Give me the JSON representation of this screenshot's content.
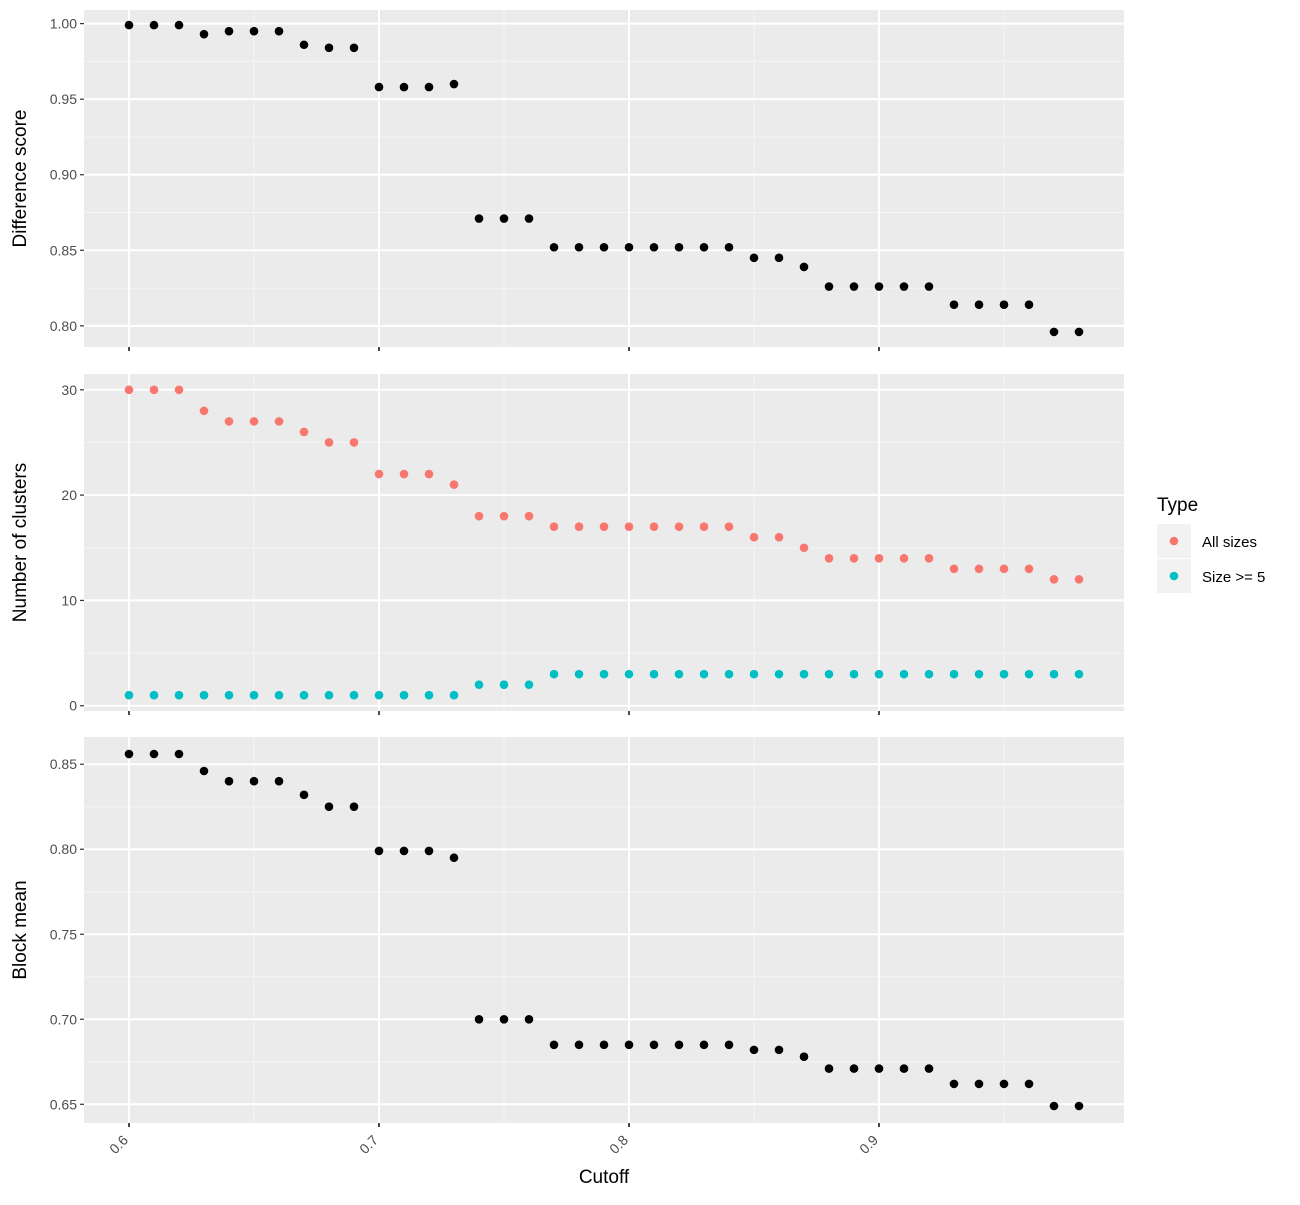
{
  "chart_data": [
    {
      "type": "scatter",
      "ylabel": "Difference score",
      "xlim": [
        0.582,
        0.998
      ],
      "ylim": [
        0.786,
        1.009
      ],
      "yticks": [
        "0.80",
        "0.85",
        "0.90",
        "0.95",
        "1.00"
      ],
      "grid": true,
      "series": [
        {
          "color": "#000000",
          "x": [
            0.6,
            0.61,
            0.62,
            0.63,
            0.64,
            0.65,
            0.66,
            0.67,
            0.68,
            0.69,
            0.7,
            0.71,
            0.72,
            0.73,
            0.74,
            0.75,
            0.76,
            0.77,
            0.78,
            0.79,
            0.8,
            0.81,
            0.82,
            0.83,
            0.84,
            0.85,
            0.86,
            0.87,
            0.88,
            0.89,
            0.9,
            0.91,
            0.92,
            0.93,
            0.94,
            0.95,
            0.96,
            0.97,
            0.98
          ],
          "y": [
            0.999,
            0.999,
            0.999,
            0.993,
            0.995,
            0.995,
            0.995,
            0.986,
            0.984,
            0.984,
            0.958,
            0.958,
            0.958,
            0.96,
            0.871,
            0.871,
            0.871,
            0.852,
            0.852,
            0.852,
            0.852,
            0.852,
            0.852,
            0.852,
            0.852,
            0.845,
            0.845,
            0.839,
            0.826,
            0.826,
            0.826,
            0.826,
            0.826,
            0.814,
            0.814,
            0.814,
            0.814,
            0.796,
            0.796
          ]
        }
      ]
    },
    {
      "type": "scatter",
      "ylabel": "Number of clusters",
      "xlim": [
        0.582,
        0.998
      ],
      "ylim": [
        -0.5,
        31.5
      ],
      "yticks": [
        "0",
        "10",
        "20",
        "30"
      ],
      "grid": true,
      "legend": {
        "title": "Type",
        "position": "right"
      },
      "series": [
        {
          "name": "All sizes",
          "color": "#F8766D",
          "x": [
            0.6,
            0.61,
            0.62,
            0.63,
            0.64,
            0.65,
            0.66,
            0.67,
            0.68,
            0.69,
            0.7,
            0.71,
            0.72,
            0.73,
            0.74,
            0.75,
            0.76,
            0.77,
            0.78,
            0.79,
            0.8,
            0.81,
            0.82,
            0.83,
            0.84,
            0.85,
            0.86,
            0.87,
            0.88,
            0.89,
            0.9,
            0.91,
            0.92,
            0.93,
            0.94,
            0.95,
            0.96,
            0.97,
            0.98
          ],
          "y": [
            30,
            30,
            30,
            28,
            27,
            27,
            27,
            26,
            25,
            25,
            22,
            22,
            22,
            21,
            18,
            18,
            18,
            17,
            17,
            17,
            17,
            17,
            17,
            17,
            17,
            16,
            16,
            15,
            14,
            14,
            14,
            14,
            14,
            13,
            13,
            13,
            13,
            12,
            12
          ]
        },
        {
          "name": "Size >= 5",
          "color": "#00BFC4",
          "x": [
            0.6,
            0.61,
            0.62,
            0.63,
            0.64,
            0.65,
            0.66,
            0.67,
            0.68,
            0.69,
            0.7,
            0.71,
            0.72,
            0.73,
            0.74,
            0.75,
            0.76,
            0.77,
            0.78,
            0.79,
            0.8,
            0.81,
            0.82,
            0.83,
            0.84,
            0.85,
            0.86,
            0.87,
            0.88,
            0.89,
            0.9,
            0.91,
            0.92,
            0.93,
            0.94,
            0.95,
            0.96,
            0.97,
            0.98
          ],
          "y": [
            1,
            1,
            1,
            1,
            1,
            1,
            1,
            1,
            1,
            1,
            1,
            1,
            1,
            1,
            2,
            2,
            2,
            3,
            3,
            3,
            3,
            3,
            3,
            3,
            3,
            3,
            3,
            3,
            3,
            3,
            3,
            3,
            3,
            3,
            3,
            3,
            3,
            3,
            3
          ]
        }
      ]
    },
    {
      "type": "scatter",
      "xlabel": "Cutoff",
      "ylabel": "Block mean",
      "xlim": [
        0.582,
        0.998
      ],
      "ylim": [
        0.639,
        0.866
      ],
      "xticks": [
        "0.6",
        "0.7",
        "0.8",
        "0.9"
      ],
      "yticks": [
        "0.65",
        "0.70",
        "0.75",
        "0.80",
        "0.85"
      ],
      "grid": true,
      "series": [
        {
          "color": "#000000",
          "x": [
            0.6,
            0.61,
            0.62,
            0.63,
            0.64,
            0.65,
            0.66,
            0.67,
            0.68,
            0.69,
            0.7,
            0.71,
            0.72,
            0.73,
            0.74,
            0.75,
            0.76,
            0.77,
            0.78,
            0.79,
            0.8,
            0.81,
            0.82,
            0.83,
            0.84,
            0.85,
            0.86,
            0.87,
            0.88,
            0.89,
            0.9,
            0.91,
            0.92,
            0.93,
            0.94,
            0.95,
            0.96,
            0.97,
            0.98
          ],
          "y": [
            0.856,
            0.856,
            0.856,
            0.846,
            0.84,
            0.84,
            0.84,
            0.832,
            0.825,
            0.825,
            0.799,
            0.799,
            0.799,
            0.795,
            0.7,
            0.7,
            0.7,
            0.685,
            0.685,
            0.685,
            0.685,
            0.685,
            0.685,
            0.685,
            0.685,
            0.682,
            0.682,
            0.678,
            0.671,
            0.671,
            0.671,
            0.671,
            0.671,
            0.662,
            0.662,
            0.662,
            0.662,
            0.649,
            0.649
          ]
        }
      ]
    }
  ]
}
